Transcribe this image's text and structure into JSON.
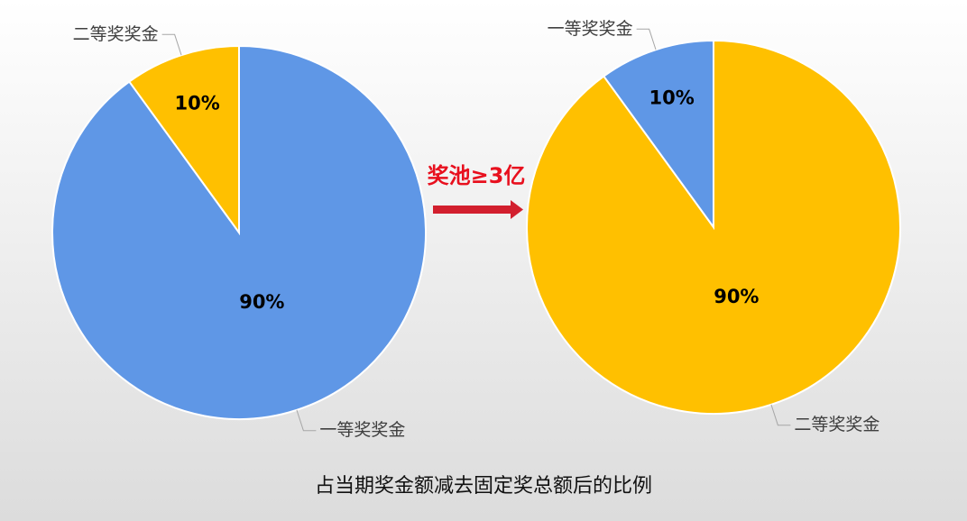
{
  "chart_data": [
    {
      "type": "pie",
      "categories": [
        "一等奖奖金",
        "二等奖奖金"
      ],
      "values": [
        90,
        10
      ],
      "value_labels": [
        "90%",
        "10%"
      ],
      "colors": [
        "#5f97e6",
        "#ffc000"
      ]
    },
    {
      "type": "pie",
      "categories": [
        "二等奖奖金",
        "一等奖奖金"
      ],
      "values": [
        90,
        10
      ],
      "value_labels": [
        "90%",
        "10%"
      ],
      "colors": [
        "#ffc000",
        "#5f97e6"
      ]
    }
  ],
  "annotation": "奖池≥3亿",
  "caption": "占当期奖金额减去固定奖总额后的比例"
}
